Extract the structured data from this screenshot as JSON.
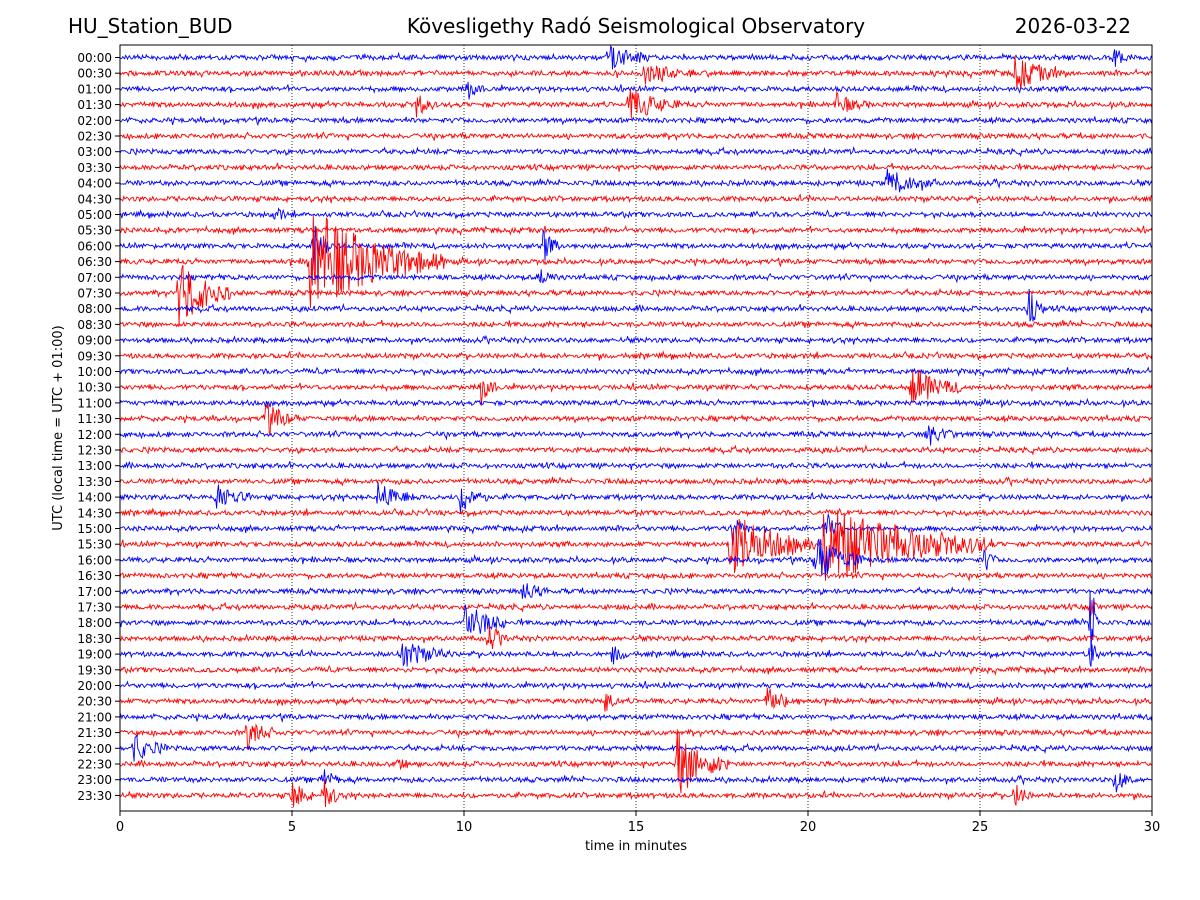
{
  "header": {
    "station": "HU_Station_BUD",
    "observatory": "Kövesligethy Radó Seismological Observatory",
    "date": "2026-03-22"
  },
  "chart_data": {
    "type": "helicorder",
    "xlabel": "time in minutes",
    "ylabel": "UTC (local time = UTC + 01:00)",
    "xlim": [
      0,
      30
    ],
    "xticks": [
      "0",
      "5",
      "10",
      "15",
      "20",
      "25",
      "30"
    ],
    "grid": "vertical dotted lines at 5-minute intervals",
    "colors": [
      "#0000ff",
      "#ff0000"
    ],
    "rows": [
      {
        "label": "00:00",
        "events": [
          {
            "t": 14.2,
            "amp": 0.4,
            "dur": 1.2
          },
          {
            "t": 28.9,
            "amp": 0.3,
            "dur": 0.5
          }
        ]
      },
      {
        "label": "00:30",
        "events": [
          {
            "t": 15.2,
            "amp": 0.3,
            "dur": 1.5
          },
          {
            "t": 26.0,
            "amp": 0.5,
            "dur": 1.5
          }
        ]
      },
      {
        "label": "01:00",
        "events": [
          {
            "t": 10.1,
            "amp": 0.3,
            "dur": 0.5
          }
        ]
      },
      {
        "label": "01:30",
        "events": [
          {
            "t": 8.6,
            "amp": 0.4,
            "dur": 0.6
          },
          {
            "t": 14.8,
            "amp": 0.5,
            "dur": 1.5
          },
          {
            "t": 20.8,
            "amp": 0.3,
            "dur": 1.0
          }
        ]
      },
      {
        "label": "02:00",
        "events": []
      },
      {
        "label": "02:30",
        "events": []
      },
      {
        "label": "03:00",
        "events": []
      },
      {
        "label": "03:30",
        "events": []
      },
      {
        "label": "04:00",
        "events": [
          {
            "t": 22.3,
            "amp": 0.4,
            "dur": 1.5
          }
        ]
      },
      {
        "label": "04:30",
        "events": []
      },
      {
        "label": "05:00",
        "events": [
          {
            "t": 4.5,
            "amp": 0.4,
            "dur": 0.3
          }
        ]
      },
      {
        "label": "05:30",
        "events": []
      },
      {
        "label": "06:00",
        "events": [
          {
            "t": 12.3,
            "amp": 0.5,
            "dur": 0.5
          },
          {
            "t": 5.6,
            "amp": 0.9,
            "dur": 0.5
          }
        ]
      },
      {
        "label": "06:30",
        "events": [
          {
            "t": 5.5,
            "amp": 1.6,
            "dur": 4.0
          }
        ]
      },
      {
        "label": "07:00",
        "events": [
          {
            "t": 12.2,
            "amp": 0.3,
            "dur": 0.5
          }
        ]
      },
      {
        "label": "07:30",
        "events": [
          {
            "t": 1.7,
            "amp": 1.1,
            "dur": 1.5
          }
        ]
      },
      {
        "label": "08:00",
        "events": [
          {
            "t": 26.4,
            "amp": 0.6,
            "dur": 0.5
          }
        ]
      },
      {
        "label": "08:30",
        "events": []
      },
      {
        "label": "09:00",
        "events": []
      },
      {
        "label": "09:30",
        "events": []
      },
      {
        "label": "10:00",
        "events": []
      },
      {
        "label": "10:30",
        "events": [
          {
            "t": 10.5,
            "amp": 0.5,
            "dur": 0.5
          },
          {
            "t": 23.0,
            "amp": 0.6,
            "dur": 1.5
          }
        ]
      },
      {
        "label": "11:00",
        "events": []
      },
      {
        "label": "11:30",
        "events": [
          {
            "t": 4.2,
            "amp": 0.5,
            "dur": 1.0
          }
        ]
      },
      {
        "label": "12:00",
        "events": [
          {
            "t": 23.5,
            "amp": 0.3,
            "dur": 1.0
          }
        ]
      },
      {
        "label": "12:30",
        "events": []
      },
      {
        "label": "13:00",
        "events": []
      },
      {
        "label": "13:30",
        "events": []
      },
      {
        "label": "14:00",
        "events": [
          {
            "t": 2.8,
            "amp": 0.4,
            "dur": 1.0
          },
          {
            "t": 7.5,
            "amp": 0.4,
            "dur": 1.2
          },
          {
            "t": 9.9,
            "amp": 0.5,
            "dur": 0.8
          }
        ]
      },
      {
        "label": "14:30",
        "events": []
      },
      {
        "label": "15:00",
        "events": [
          {
            "t": 17.8,
            "amp": 0.5,
            "dur": 0.5
          },
          {
            "t": 20.5,
            "amp": 0.6,
            "dur": 0.6
          }
        ]
      },
      {
        "label": "15:30",
        "events": [
          {
            "t": 17.7,
            "amp": 1.0,
            "dur": 2.5
          },
          {
            "t": 20.4,
            "amp": 1.3,
            "dur": 5.0
          }
        ]
      },
      {
        "label": "16:00",
        "events": [
          {
            "t": 20.2,
            "amp": 0.8,
            "dur": 1.5
          },
          {
            "t": 25.1,
            "amp": 0.4,
            "dur": 0.4
          }
        ]
      },
      {
        "label": "16:30",
        "events": []
      },
      {
        "label": "17:00",
        "events": [
          {
            "t": 11.7,
            "amp": 0.3,
            "dur": 0.8
          }
        ]
      },
      {
        "label": "17:30",
        "events": [
          {
            "t": 28.2,
            "amp": 0.5,
            "dur": 0.2
          }
        ]
      },
      {
        "label": "18:00",
        "events": [
          {
            "t": 10.0,
            "amp": 0.7,
            "dur": 1.2
          },
          {
            "t": 28.2,
            "amp": 1.5,
            "dur": 0.3
          }
        ]
      },
      {
        "label": "18:30",
        "events": [
          {
            "t": 10.7,
            "amp": 0.4,
            "dur": 0.6
          }
        ]
      },
      {
        "label": "19:00",
        "events": [
          {
            "t": 8.2,
            "amp": 0.4,
            "dur": 1.5
          },
          {
            "t": 14.3,
            "amp": 0.3,
            "dur": 0.5
          },
          {
            "t": 28.2,
            "amp": 0.6,
            "dur": 0.3
          }
        ]
      },
      {
        "label": "19:30",
        "events": []
      },
      {
        "label": "20:00",
        "events": []
      },
      {
        "label": "20:30",
        "events": [
          {
            "t": 14.1,
            "amp": 0.4,
            "dur": 0.4
          },
          {
            "t": 18.8,
            "amp": 0.4,
            "dur": 1.0
          }
        ]
      },
      {
        "label": "21:00",
        "events": []
      },
      {
        "label": "21:30",
        "events": [
          {
            "t": 3.7,
            "amp": 0.5,
            "dur": 0.8
          }
        ]
      },
      {
        "label": "22:00",
        "events": [
          {
            "t": 0.4,
            "amp": 0.4,
            "dur": 1.0
          }
        ]
      },
      {
        "label": "22:30",
        "events": [
          {
            "t": 16.2,
            "amp": 1.0,
            "dur": 1.5
          },
          {
            "t": 8.0,
            "amp": 0.3,
            "dur": 0.4
          }
        ]
      },
      {
        "label": "23:00",
        "events": [
          {
            "t": 5.9,
            "amp": 0.4,
            "dur": 0.5
          },
          {
            "t": 28.9,
            "amp": 0.4,
            "dur": 0.6
          }
        ]
      },
      {
        "label": "23:30",
        "events": [
          {
            "t": 5.0,
            "amp": 0.5,
            "dur": 0.6
          },
          {
            "t": 5.9,
            "amp": 0.6,
            "dur": 0.5
          },
          {
            "t": 26.0,
            "amp": 0.4,
            "dur": 0.5
          }
        ]
      }
    ]
  }
}
